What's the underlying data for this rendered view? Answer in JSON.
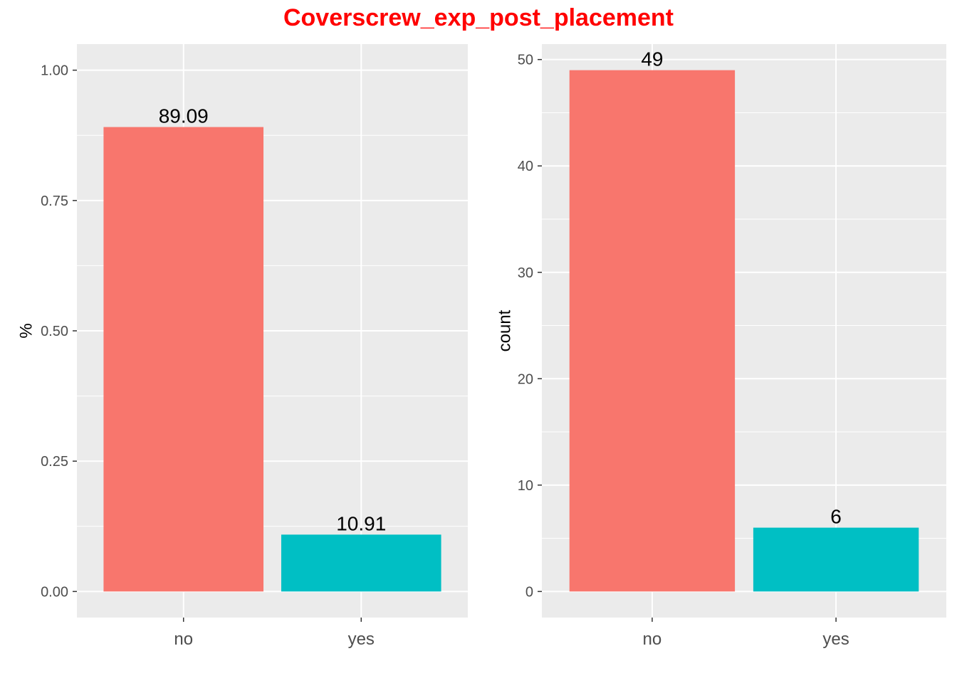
{
  "title": "Coverscrew_exp_post_placement",
  "chart_data": [
    {
      "type": "bar",
      "categories": [
        "no",
        "yes"
      ],
      "values": [
        0.8909,
        0.1091
      ],
      "data_labels": [
        "89.09",
        "10.91"
      ],
      "colors": [
        "#F8766D",
        "#00BFC4"
      ],
      "xlabel": "",
      "ylabel": "%",
      "ylim": [
        -0.05,
        1.05
      ],
      "yticks": [
        0,
        0.25,
        0.5,
        0.75,
        1.0
      ],
      "ytick_labels": [
        "0.00",
        "0.25",
        "0.50",
        "0.75",
        "1.00"
      ],
      "grid": true,
      "legend": "none"
    },
    {
      "type": "bar",
      "categories": [
        "no",
        "yes"
      ],
      "values": [
        49,
        6
      ],
      "data_labels": [
        "49",
        "6"
      ],
      "colors": [
        "#F8766D",
        "#00BFC4"
      ],
      "xlabel": "",
      "ylabel": "count",
      "ylim": [
        -2.45,
        51.45
      ],
      "yticks": [
        0,
        10,
        20,
        30,
        40,
        50
      ],
      "ytick_labels": [
        "0",
        "10",
        "20",
        "30",
        "40",
        "50"
      ],
      "grid": true,
      "legend": "none"
    }
  ]
}
